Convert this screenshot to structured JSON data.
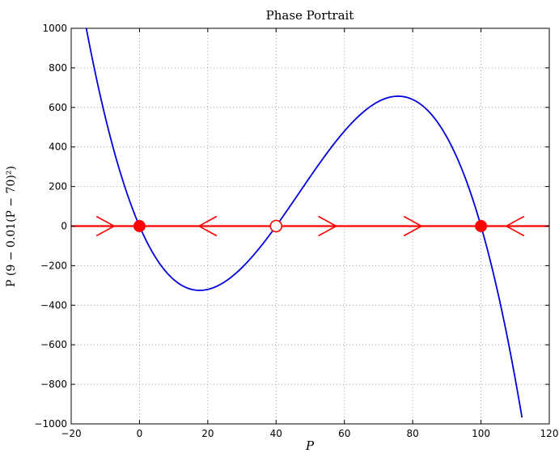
{
  "chart_data": {
    "type": "line",
    "title": "Phase Portrait",
    "xlabel": "P",
    "ylabel": "P (9 − 0.01(P − 70)²)",
    "xlim": [
      -20,
      120
    ],
    "ylim": [
      -1000,
      1000
    ],
    "xticks": [
      -20,
      0,
      20,
      40,
      60,
      80,
      100,
      120
    ],
    "yticks": [
      -1000,
      -800,
      -600,
      -400,
      -200,
      0,
      200,
      400,
      600,
      800,
      1000
    ],
    "xtick_labels": [
      "−20",
      "0",
      "20",
      "40",
      "60",
      "80",
      "100",
      "120"
    ],
    "ytick_labels": [
      "−1000",
      "−800",
      "−600",
      "−400",
      "−200",
      "0",
      "200",
      "400",
      "600",
      "800",
      "1000"
    ],
    "grid": true,
    "series": [
      {
        "kind": "curve",
        "color": "#0000dd",
        "x": [
          -16,
          -14,
          -12,
          -10,
          -8,
          -6,
          -4,
          -2,
          0,
          2,
          5,
          8,
          10,
          12,
          15,
          17.6,
          20,
          25,
          30,
          35,
          40,
          45,
          50,
          55,
          60,
          65,
          70,
          75,
          76,
          80,
          85,
          90,
          95,
          100,
          105,
          110,
          112
        ],
        "y": [
          1039,
          839,
          656,
          490,
          340,
          205,
          85,
          -23,
          0,
          -112,
          -2,
          -265,
          -315,
          -355,
          -324,
          -328,
          -320,
          -281,
          -210,
          -116,
          0,
          131,
          292,
          452,
          648,
          803,
          630,
          649,
          655,
          635,
          567,
          478,
          330,
          0,
          -200,
          -660,
          -1027
        ]
      }
    ],
    "phase_line": {
      "y": 0,
      "color": "#ff0000"
    },
    "arrows": [
      {
        "x": -10,
        "direction": "right"
      },
      {
        "x": 20,
        "direction": "left"
      },
      {
        "x": 55,
        "direction": "right"
      },
      {
        "x": 80,
        "direction": "right"
      },
      {
        "x": 110,
        "direction": "left"
      }
    ],
    "equilibria": [
      {
        "x": 0,
        "y": 0,
        "type": "stable"
      },
      {
        "x": 40,
        "y": 0,
        "type": "unstable"
      },
      {
        "x": 100,
        "y": 0,
        "type": "stable"
      }
    ]
  }
}
